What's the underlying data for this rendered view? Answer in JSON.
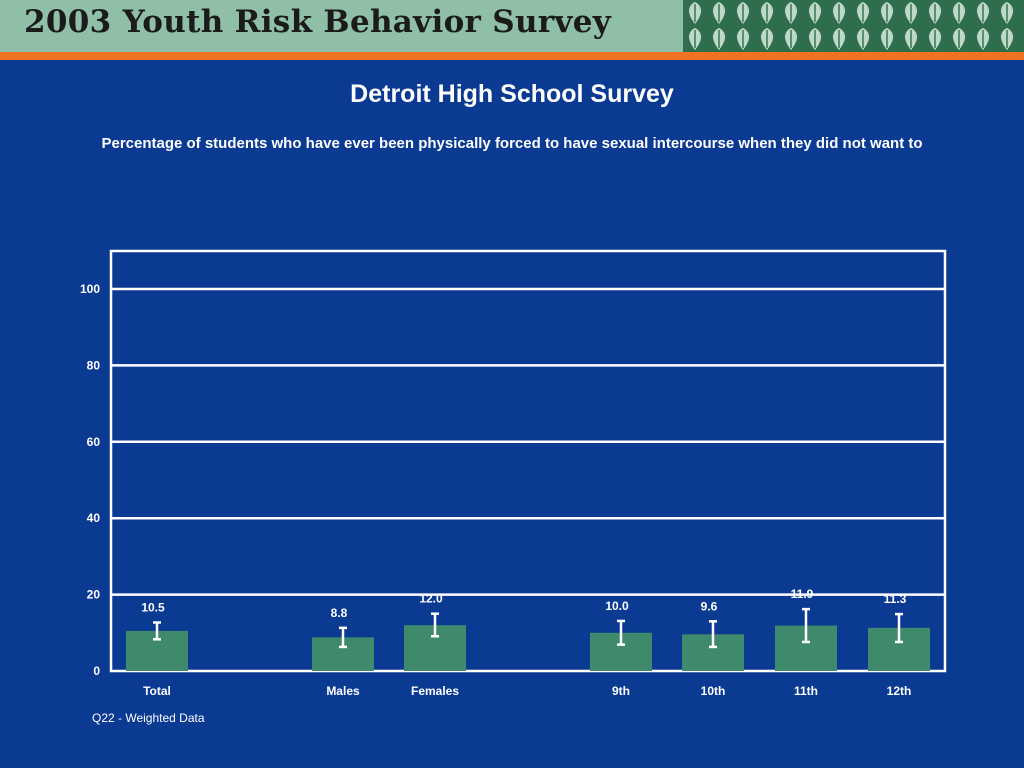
{
  "header": {
    "title": "2003 Youth Risk Behavior Survey"
  },
  "slide": {
    "title": "Detroit High School Survey",
    "subtitle": "Percentage of students who have ever been physically forced to have sexual intercourse when they did not want to",
    "footnote": "Q22 - Weighted Data"
  },
  "colors": {
    "background": "#0b3a93",
    "bar": "#3f8a6d",
    "header_band": "#8fbfa7",
    "header_stripe": "#ef7322",
    "gridline": "#ffffff"
  },
  "chart_data": {
    "type": "bar",
    "categories": [
      "Total",
      "Males",
      "Females",
      "9th",
      "10th",
      "11th",
      "12th"
    ],
    "values": [
      10.5,
      8.8,
      12.0,
      10.0,
      9.6,
      11.9,
      11.3
    ],
    "value_labels": [
      "10.5",
      "8.8",
      "12.0",
      "10.0",
      "9.6",
      "11.9",
      "11.3"
    ],
    "error_bars": [
      [
        8.3,
        12.7
      ],
      [
        6.3,
        11.3
      ],
      [
        9.1,
        15.0
      ],
      [
        6.9,
        13.1
      ],
      [
        6.3,
        13.0
      ],
      [
        7.6,
        16.2
      ],
      [
        7.6,
        14.9
      ]
    ],
    "groups": [
      [
        "Total"
      ],
      [
        "Males",
        "Females"
      ],
      [
        "9th",
        "10th",
        "11th",
        "12th"
      ]
    ],
    "yticks": [
      0,
      20,
      40,
      60,
      80,
      100
    ],
    "ylim": [
      0,
      100
    ],
    "xlabel": "",
    "ylabel": "",
    "grid": true,
    "legend": "none"
  }
}
